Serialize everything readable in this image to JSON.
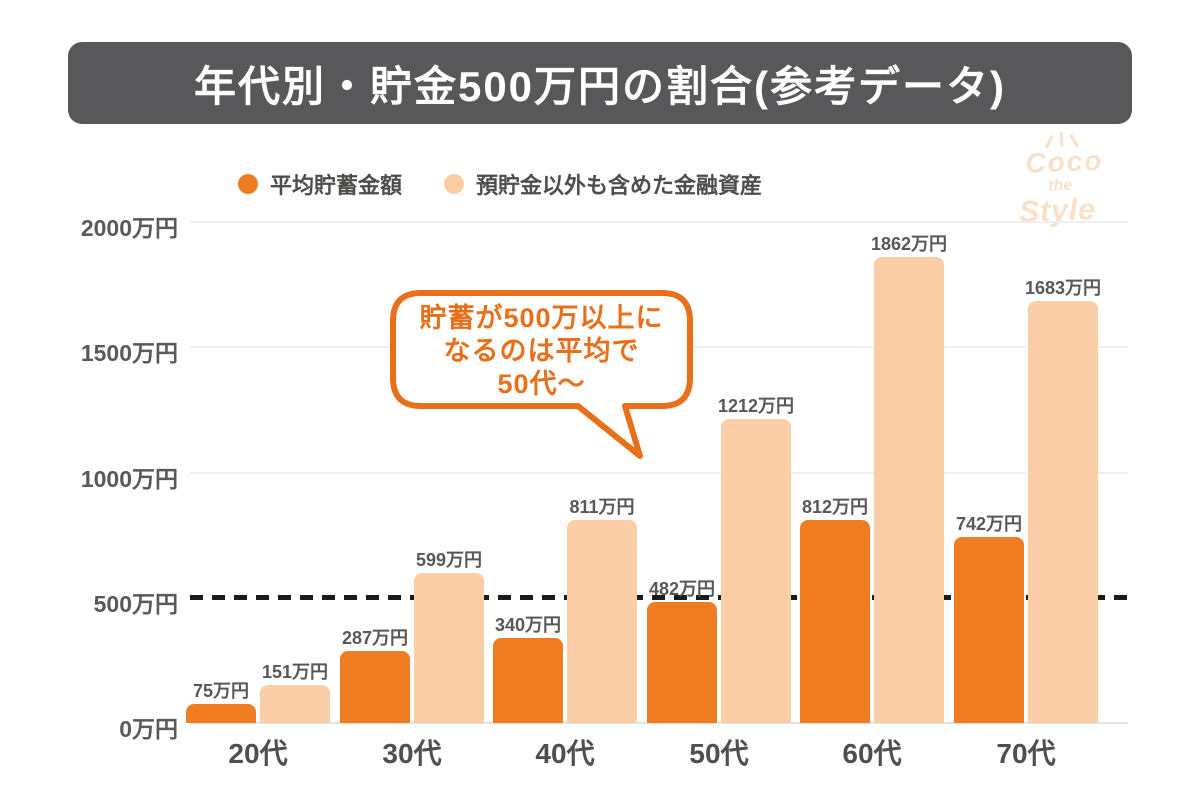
{
  "title": "年代別・貯金500万円の割合(参考データ)",
  "logo": {
    "line1": "Coco",
    "line2": "the",
    "line3": "Style"
  },
  "callout": {
    "lines": [
      "貯蓄が500万以上に",
      "なるのは平均で",
      "50代〜"
    ]
  },
  "colors": {
    "title_bg": "#58585A",
    "accent_orange": "#F07C22",
    "peach": "#FBCEA7",
    "callout_orange": "#E8701A",
    "dashed_line": "#1B1B1B",
    "logo_peach": "#FAE0CB",
    "text_dark": "#595757"
  },
  "chart_data": {
    "type": "bar",
    "title": "年代別・貯金500万円の割合(参考データ)",
    "categories": [
      "20代",
      "30代",
      "40代",
      "50代",
      "60代",
      "70代"
    ],
    "series": [
      {
        "name": "平均貯蓄金額",
        "color": "#F07C22",
        "values": [
          75,
          287,
          340,
          482,
          812,
          742
        ],
        "labels": [
          "75万円",
          "287万円",
          "340万円",
          "482万円",
          "812万円",
          "742万円"
        ]
      },
      {
        "name": "預貯金以外も含めた金融資産",
        "color": "#FBCEA7",
        "values": [
          151,
          599,
          811,
          1212,
          1862,
          1683
        ],
        "labels": [
          "151万円",
          "599万円",
          "811万円",
          "1212万円",
          "1862万円",
          "1683万円"
        ]
      }
    ],
    "unit": "万円",
    "xlabel": "",
    "ylabel": "",
    "ylim": [
      0,
      2000
    ],
    "y_ticks": [
      {
        "value": 2000,
        "label": "2000万円"
      },
      {
        "value": 1500,
        "label": "1500万円"
      },
      {
        "value": 1000,
        "label": "1000万円"
      },
      {
        "value": 500,
        "label": "500万円"
      },
      {
        "value": 0,
        "label": "0万円"
      }
    ],
    "grid": "horizontal-light",
    "legend_position": "top-center",
    "reference_line": {
      "value": 500,
      "style": "dashed",
      "color": "#1B1B1B"
    }
  }
}
